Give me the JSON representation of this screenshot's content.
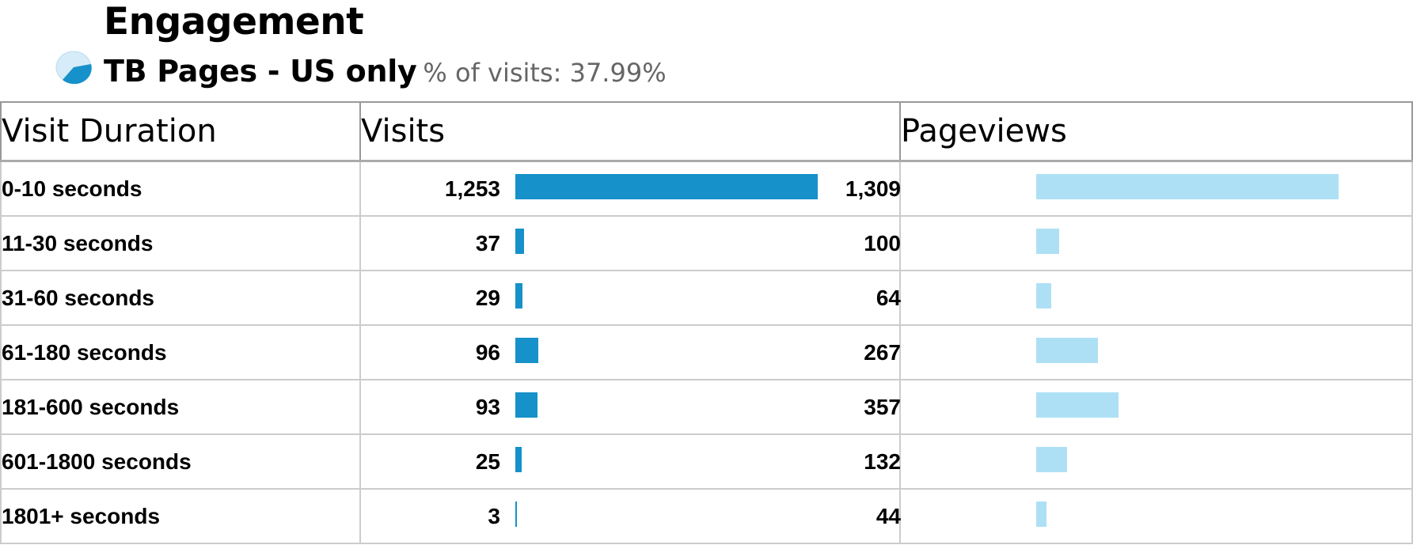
{
  "header": {
    "title": "Engagement",
    "segment_name": "TB Pages - US only",
    "segment_share": "% of visits: 37.99%"
  },
  "colors": {
    "visits_bar": "#1691c9",
    "pageviews_bar": "#aee0f5",
    "border": "#cccccc",
    "muted_text": "#666666"
  },
  "table": {
    "columns": [
      "Visit Duration",
      "Visits",
      "Pageviews"
    ],
    "max_visits": 1253,
    "max_pageviews": 1309,
    "rows": [
      {
        "duration": "0-10 seconds",
        "visits": 1253,
        "visits_label": "1,253",
        "pageviews": 1309,
        "pageviews_label": "1,309"
      },
      {
        "duration": "11-30 seconds",
        "visits": 37,
        "visits_label": "37",
        "pageviews": 100,
        "pageviews_label": "100"
      },
      {
        "duration": "31-60 seconds",
        "visits": 29,
        "visits_label": "29",
        "pageviews": 64,
        "pageviews_label": "64"
      },
      {
        "duration": "61-180 seconds",
        "visits": 96,
        "visits_label": "96",
        "pageviews": 267,
        "pageviews_label": "267"
      },
      {
        "duration": "181-600 seconds",
        "visits": 93,
        "visits_label": "93",
        "pageviews": 357,
        "pageviews_label": "357"
      },
      {
        "duration": "601-1800 seconds",
        "visits": 25,
        "visits_label": "25",
        "pageviews": 132,
        "pageviews_label": "132"
      },
      {
        "duration": "1801+ seconds",
        "visits": 3,
        "visits_label": "3",
        "pageviews": 44,
        "pageviews_label": "44"
      }
    ]
  }
}
